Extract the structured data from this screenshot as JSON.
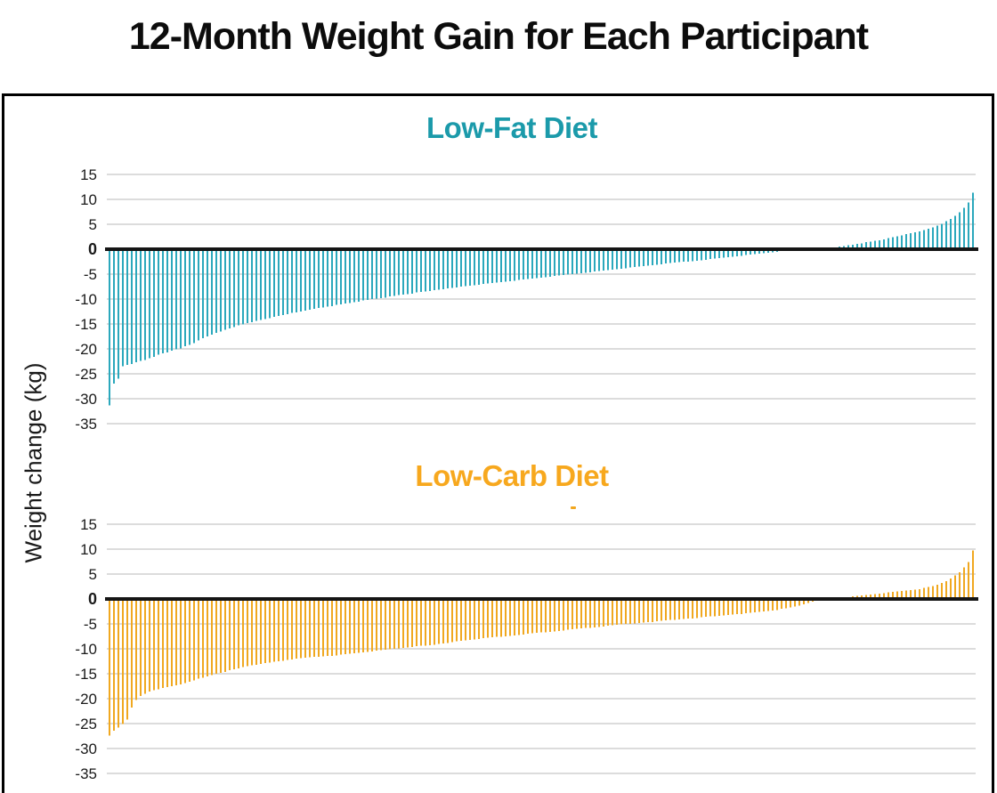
{
  "page_title": "12-Month Weight Gain for Each Participant",
  "y_axis_label": "Weight change (kg)",
  "colors": {
    "background": "#ffffff",
    "frame_border": "#000000",
    "gridline": "#b9b9b9",
    "zero_line": "#151515",
    "title_text": "#0c0c0c",
    "tick_text": "#1a1a1a",
    "stray_mark": "#f2a71f"
  },
  "chart_data": [
    {
      "type": "bar",
      "title": "Low-Fat Diet",
      "title_color": "#1b9aaa",
      "bar_color": "#2ba8bc",
      "xlabel": "",
      "ylabel": "Weight change (kg)",
      "x_meaning": "individual participants sorted by 12-month weight change",
      "n_bars": 195,
      "ylim": [
        -35,
        15
      ],
      "yticks": [
        15,
        10,
        5,
        0,
        -5,
        -10,
        -15,
        -20,
        -25,
        -30,
        -35
      ],
      "grid": true,
      "legend": "none",
      "values": [
        -31.3,
        -27,
        -26,
        -23.5,
        -23.2,
        -23,
        -22.7,
        -22.4,
        -22.2,
        -21.9,
        -21.6,
        -21.2,
        -20.9,
        -20.7,
        -20.4,
        -20.1,
        -19.9,
        -19.5,
        -19.2,
        -18.8,
        -18.3,
        -17.9,
        -17.5,
        -17.1,
        -16.8,
        -16.5,
        -16.2,
        -15.9,
        -15.6,
        -15.3,
        -15.1,
        -14.8,
        -14.6,
        -14.4,
        -14.2,
        -14,
        -13.8,
        -13.6,
        -13.4,
        -13.2,
        -13,
        -12.8,
        -12.7,
        -12.5,
        -12.3,
        -12.1,
        -12,
        -11.8,
        -11.7,
        -11.5,
        -11.4,
        -11.2,
        -11.1,
        -10.9,
        -10.8,
        -10.6,
        -10.5,
        -10.3,
        -10.2,
        -10,
        -9.9,
        -9.8,
        -9.7,
        -9.5,
        -9.4,
        -9.2,
        -9.1,
        -9,
        -8.9,
        -8.7,
        -8.6,
        -8.5,
        -8.4,
        -8.2,
        -8.1,
        -8,
        -7.9,
        -7.8,
        -7.7,
        -7.5,
        -7.4,
        -7.3,
        -7.2,
        -7.1,
        -7,
        -6.9,
        -6.8,
        -6.7,
        -6.6,
        -6.5,
        -6.4,
        -6.3,
        -6.2,
        -6.1,
        -6,
        -5.9,
        -5.8,
        -5.7,
        -5.6,
        -5.5,
        -5.4,
        -5.3,
        -5.2,
        -5.1,
        -5,
        -4.9,
        -4.8,
        -4.7,
        -4.6,
        -4.5,
        -4.4,
        -4.3,
        -4.2,
        -4.1,
        -4,
        -3.9,
        -3.8,
        -3.7,
        -3.6,
        -3.5,
        -3.4,
        -3.3,
        -3.2,
        -3.1,
        -3,
        -2.9,
        -2.8,
        -2.7,
        -2.6,
        -2.5,
        -2.5,
        -2.4,
        -2.3,
        -2.2,
        -2.1,
        -2,
        -1.9,
        -1.8,
        -1.7,
        -1.6,
        -1.5,
        -1.4,
        -1.3,
        -1.2,
        -1.1,
        -1,
        -0.9,
        -0.8,
        -0.7,
        -0.6,
        -0.5,
        -0.4,
        -0.3,
        -0.2,
        -0.1,
        0,
        0,
        0,
        0,
        0,
        0,
        0.1,
        0.2,
        0.3,
        0.5,
        0.6,
        0.8,
        0.9,
        1.1,
        1.2,
        1.4,
        1.5,
        1.7,
        1.8,
        2,
        2.2,
        2.4,
        2.6,
        2.8,
        3,
        3.2,
        3.4,
        3.6,
        3.8,
        4.1,
        4.4,
        4.7,
        5.1,
        5.6,
        6.1,
        6.7,
        7.4,
        8.3,
        9.4,
        11.3
      ]
    },
    {
      "type": "bar",
      "title": "Low-Carb Diet",
      "title_color": "#f7a81e",
      "bar_color": "#f0a820",
      "xlabel": "",
      "ylabel": "Weight change (kg)",
      "x_meaning": "individual participants sorted by 12-month weight change",
      "n_bars": 195,
      "ylim": [
        -35,
        15
      ],
      "yticks": [
        15,
        10,
        5,
        0,
        -5,
        -10,
        -15,
        -20,
        -25,
        -30,
        -35
      ],
      "grid": true,
      "legend": "none",
      "values": [
        -27.4,
        -26.4,
        -25.8,
        -25.1,
        -24.2,
        -21.8,
        -20.3,
        -19.5,
        -19,
        -18.6,
        -18.3,
        -18.1,
        -17.9,
        -17.7,
        -17.5,
        -17.3,
        -17.1,
        -16.9,
        -16.6,
        -16.3,
        -16,
        -15.8,
        -15.5,
        -15.3,
        -15,
        -14.8,
        -14.6,
        -14.3,
        -14.1,
        -13.9,
        -13.7,
        -13.5,
        -13.3,
        -13.2,
        -13,
        -12.9,
        -12.8,
        -12.6,
        -12.5,
        -12.4,
        -12.2,
        -12.1,
        -12,
        -11.9,
        -11.8,
        -11.7,
        -11.6,
        -11.6,
        -11.5,
        -11.4,
        -11.4,
        -11.3,
        -11.2,
        -11.1,
        -11,
        -10.9,
        -10.8,
        -10.7,
        -10.6,
        -10.5,
        -10.4,
        -10.3,
        -10.2,
        -10.1,
        -10,
        -9.9,
        -9.8,
        -9.7,
        -9.6,
        -9.5,
        -9.4,
        -9.4,
        -9.3,
        -9.2,
        -9,
        -8.9,
        -8.8,
        -8.7,
        -8.5,
        -8.4,
        -8.3,
        -8.2,
        -8.1,
        -8,
        -7.9,
        -7.8,
        -7.7,
        -7.6,
        -7.6,
        -7.5,
        -7.4,
        -7.3,
        -7.2,
        -7.1,
        -7,
        -6.9,
        -6.8,
        -6.7,
        -6.7,
        -6.6,
        -6.5,
        -6.4,
        -6.3,
        -6.2,
        -6.1,
        -6,
        -5.9,
        -5.8,
        -5.8,
        -5.7,
        -5.6,
        -5.5,
        -5.4,
        -5.3,
        -5.2,
        -5.1,
        -5,
        -5,
        -4.9,
        -4.8,
        -4.7,
        -4.6,
        -4.6,
        -4.5,
        -4.4,
        -4.3,
        -4.2,
        -4.2,
        -4.1,
        -4,
        -3.9,
        -3.9,
        -3.8,
        -3.7,
        -3.6,
        -3.5,
        -3.5,
        -3.4,
        -3.3,
        -3.2,
        -3.1,
        -3,
        -3,
        -2.9,
        -2.8,
        -2.7,
        -2.6,
        -2.5,
        -2.4,
        -2.3,
        -2.2,
        -2,
        -1.9,
        -1.7,
        -1.5,
        -1.3,
        -1.1,
        -0.8,
        -0.5,
        -0.3,
        0,
        0,
        0,
        0,
        0.2,
        0.3,
        0.4,
        0.5,
        0.6,
        0.7,
        0.8,
        0.9,
        1,
        1.1,
        1.2,
        1.3,
        1.4,
        1.5,
        1.6,
        1.7,
        1.8,
        1.9,
        2,
        2.2,
        2.4,
        2.6,
        2.9,
        3.2,
        3.6,
        4.1,
        4.7,
        5.4,
        6.3,
        7.4,
        9.7
      ]
    }
  ]
}
